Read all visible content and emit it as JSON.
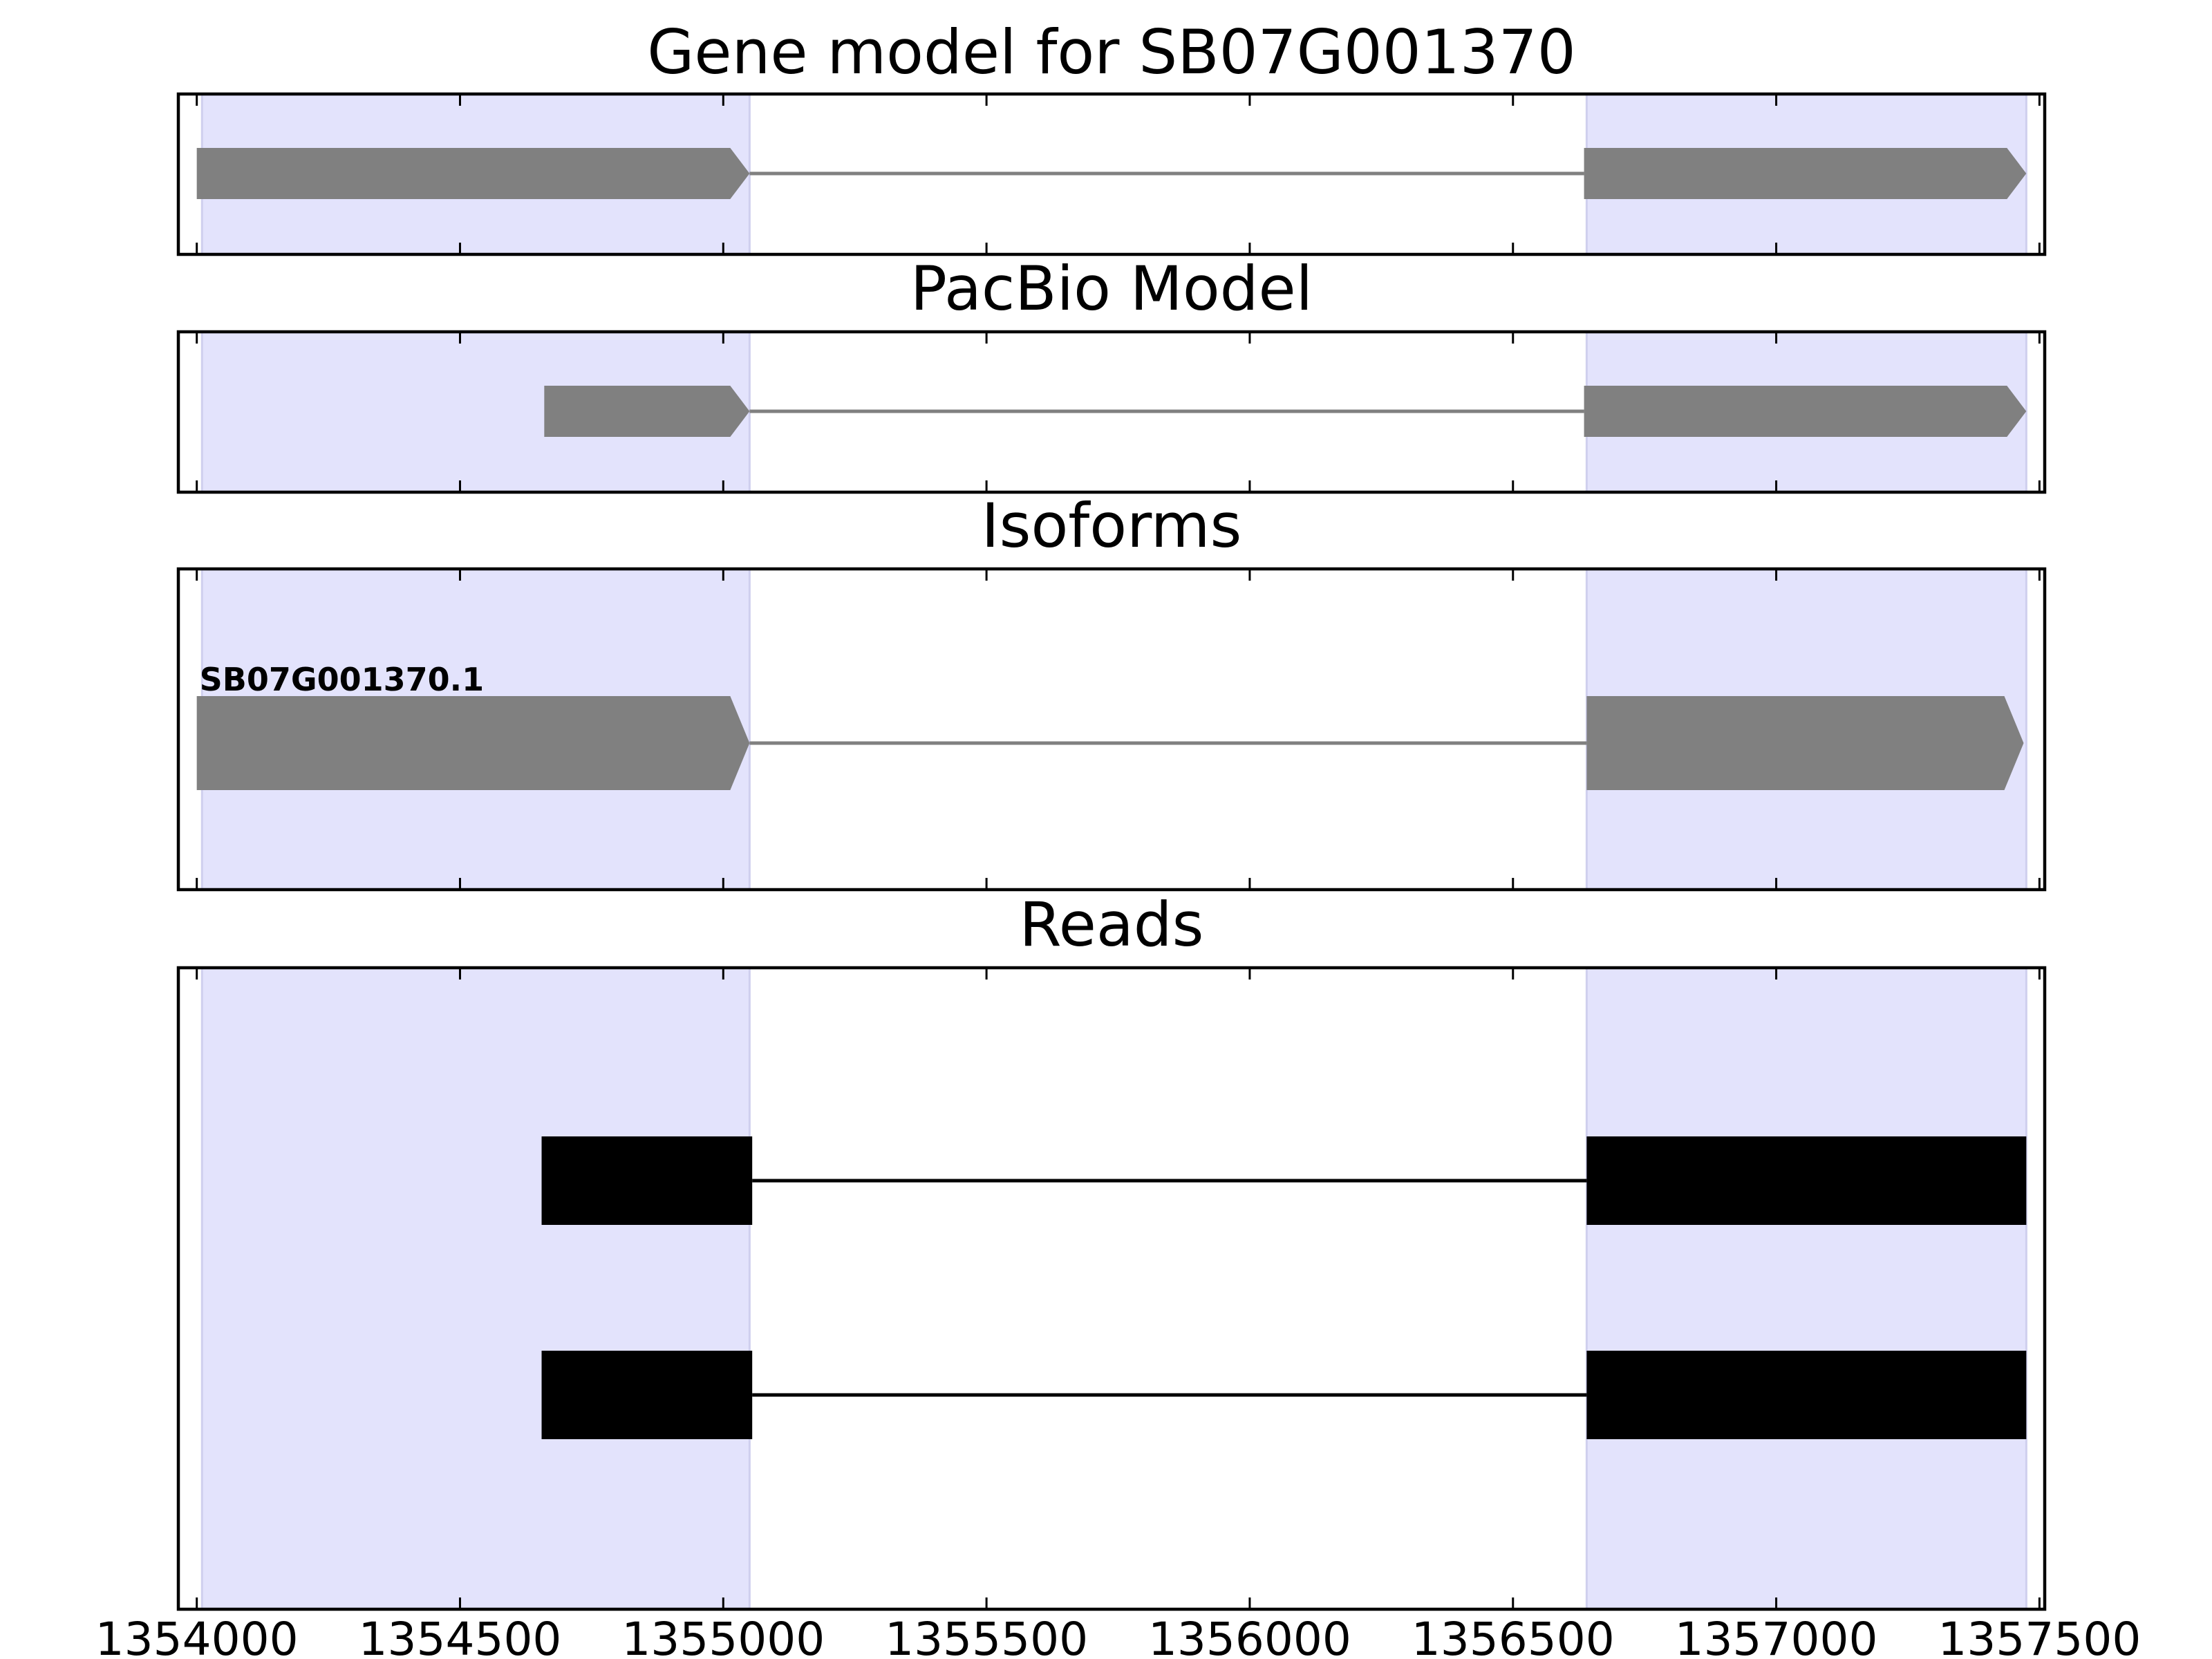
{
  "chart_data": {
    "type": "gene-structure",
    "x_range": [
      1353965,
      1357510
    ],
    "x_ticks": [
      {
        "value": 1354000,
        "label": "1354000"
      },
      {
        "value": 1354500,
        "label": "1354500"
      },
      {
        "value": 1355000,
        "label": "1355000"
      },
      {
        "value": 1355500,
        "label": "1355500"
      },
      {
        "value": 1356000,
        "label": "1356000"
      },
      {
        "value": 1356500,
        "label": "1356500"
      },
      {
        "value": 1357000,
        "label": "1357000"
      },
      {
        "value": 1357500,
        "label": "1357500"
      }
    ],
    "highlight_regions": [
      {
        "start": 1354010,
        "end": 1355050
      },
      {
        "start": 1356640,
        "end": 1357475
      }
    ],
    "panels": [
      {
        "id": "gene-model",
        "title": "Gene model for SB07G001370",
        "tracks": [
          {
            "label": "",
            "exons": [
              [
                1354000,
                1355050
              ],
              [
                1356635,
                1357475
              ]
            ],
            "strand": "+"
          }
        ]
      },
      {
        "id": "pacbio-model",
        "title": "PacBio Model",
        "tracks": [
          {
            "label": "",
            "exons": [
              [
                1354660,
                1355050
              ],
              [
                1356635,
                1357475
              ]
            ],
            "strand": "+"
          }
        ]
      },
      {
        "id": "isoforms",
        "title": "Isoforms",
        "tracks": [
          {
            "label": "SB07G001370.1",
            "exons": [
              [
                1354000,
                1355050
              ],
              [
                1356640,
                1357470
              ]
            ],
            "strand": "+"
          }
        ]
      },
      {
        "id": "reads",
        "title": "Reads",
        "tracks": [
          {
            "label": "",
            "exons": [
              [
                1354655,
                1355055
              ],
              [
                1356640,
                1357475
              ]
            ]
          },
          {
            "label": "",
            "exons": [
              [
                1354655,
                1355055
              ],
              [
                1356640,
                1357475
              ]
            ]
          }
        ]
      }
    ],
    "colors": {
      "highlight": "#e3e3fc",
      "highlight_edge": "#cfcfee",
      "model_exon": "#808080",
      "intron": "#808080",
      "read_exon": "#000000",
      "read_intron": "#000000",
      "frame": "#000000"
    }
  }
}
